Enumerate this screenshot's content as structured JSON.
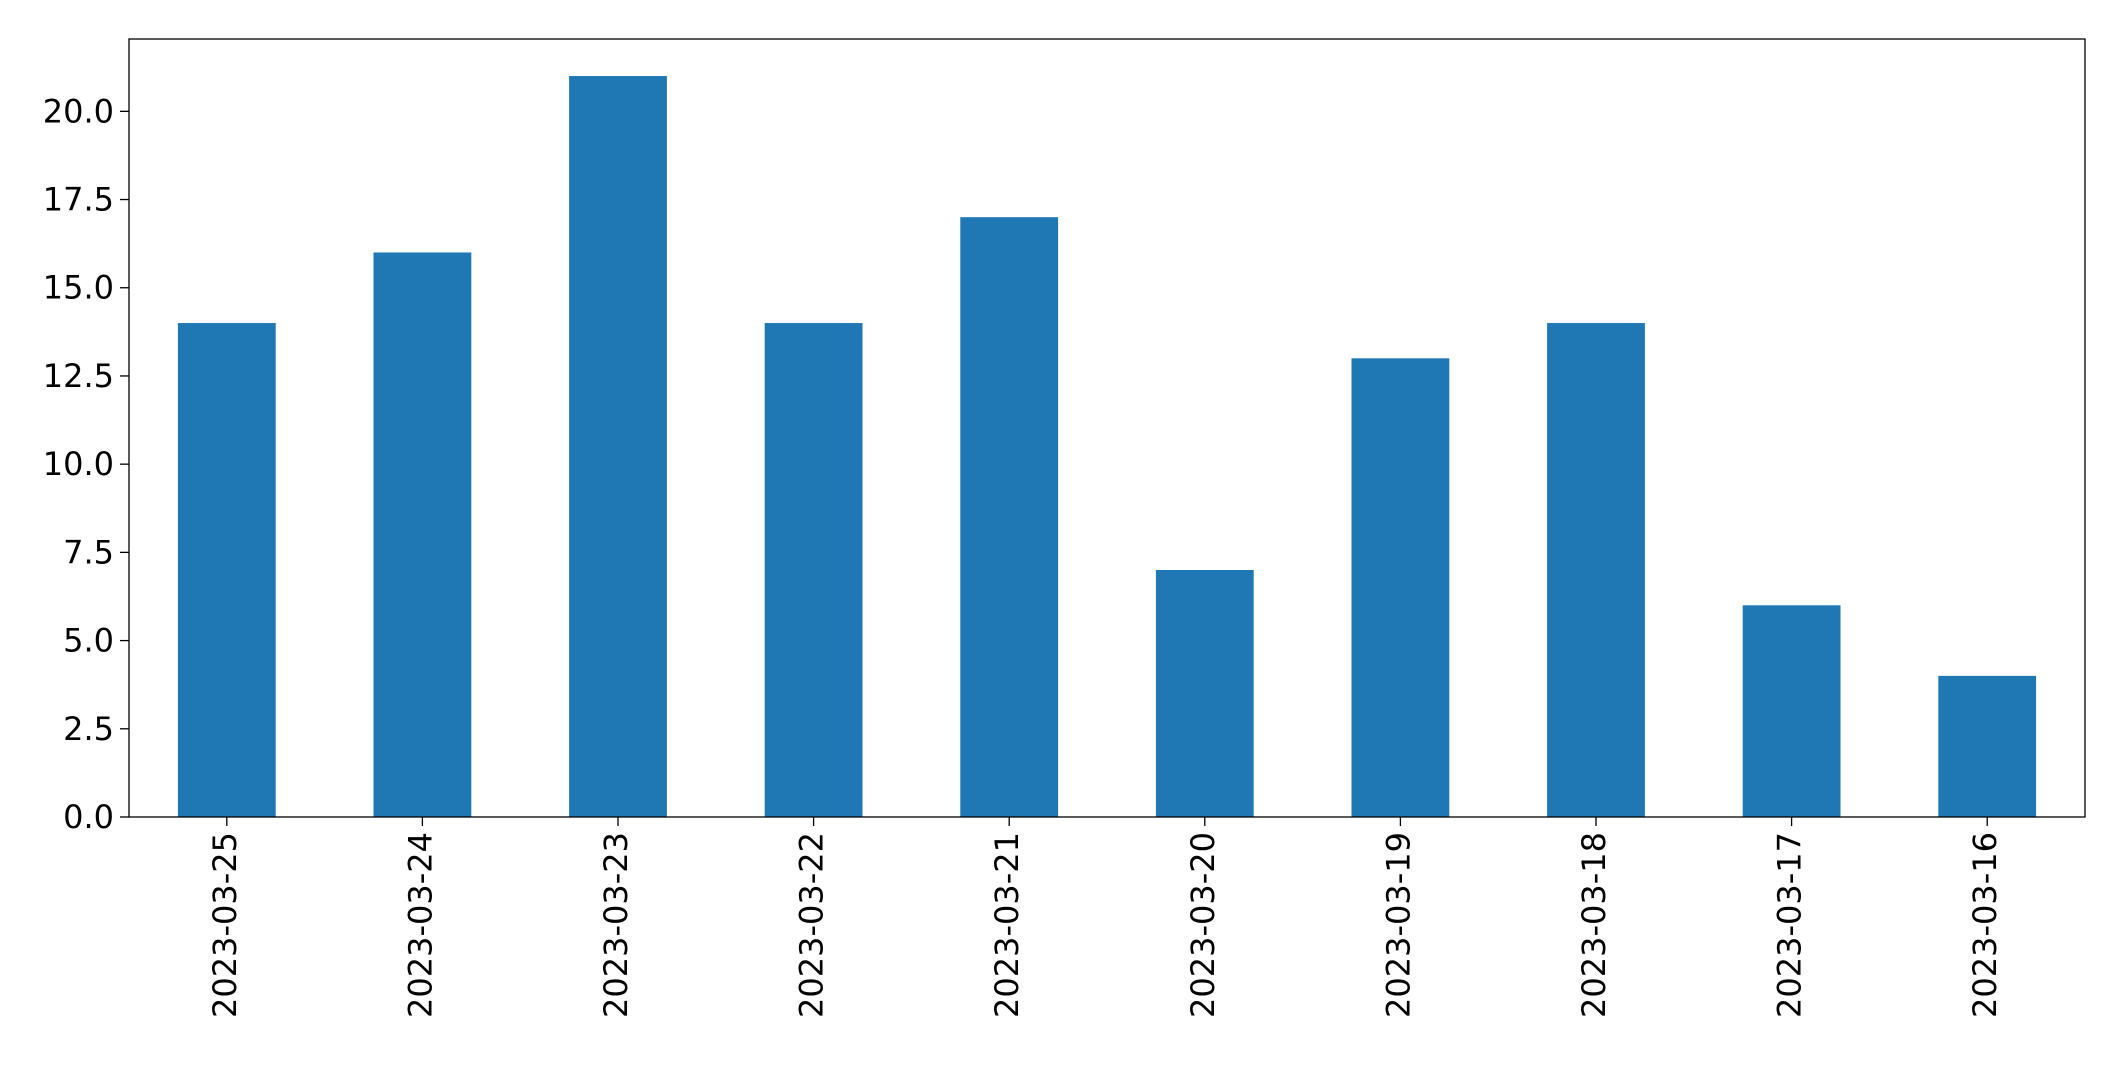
{
  "chart_data": {
    "type": "bar",
    "categories": [
      "2023-03-25",
      "2023-03-24",
      "2023-03-23",
      "2023-03-22",
      "2023-03-21",
      "2023-03-20",
      "2023-03-19",
      "2023-03-18",
      "2023-03-17",
      "2023-03-16"
    ],
    "values": [
      14,
      16,
      21,
      14,
      17,
      7,
      13,
      14,
      6,
      4
    ],
    "color": "#1f77b4",
    "ylim": [
      0,
      22.05
    ],
    "yticks": [
      {
        "value": 0,
        "label": "0.0"
      },
      2.5,
      {
        "value": 5,
        "label": "5.0"
      },
      7.5,
      {
        "value": 10,
        "label": "10.0"
      },
      12.5,
      {
        "value": 15,
        "label": "15.0"
      },
      17.5,
      {
        "value": 20,
        "label": "20.0"
      }
    ],
    "grid": false
  }
}
